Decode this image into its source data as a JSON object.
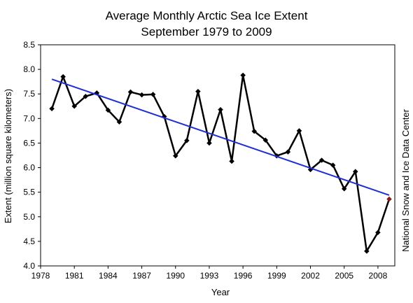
{
  "chart_data": {
    "type": "line",
    "title": "Average Monthly Arctic Sea Ice Extent",
    "subtitle": "September 1979 to 2009",
    "xlabel": "Year",
    "ylabel": "Extent (million square kilometers)",
    "credit": "National Snow and Ice Data Center",
    "xlim": [
      1978,
      2009.5
    ],
    "ylim": [
      4.0,
      8.5
    ],
    "x_ticks": [
      1978,
      1981,
      1984,
      1987,
      1990,
      1993,
      1996,
      1999,
      2002,
      2005,
      2008
    ],
    "y_ticks": [
      "4.0",
      "4.5",
      "5.0",
      "5.5",
      "6.0",
      "6.5",
      "7.0",
      "7.5",
      "8.0",
      "8.5"
    ],
    "grid": false,
    "series": [
      {
        "type": "line",
        "color": "#000000",
        "x": [
          1979,
          1980,
          1981,
          1982,
          1983,
          1984,
          1985,
          1986,
          1987,
          1988,
          1989,
          1990,
          1991,
          1992,
          1993,
          1994,
          1995,
          1996,
          1997,
          1998,
          1999,
          2000,
          2001,
          2002,
          2003,
          2004,
          2005,
          2006,
          2007,
          2008,
          2009
        ],
        "values": [
          7.2,
          7.85,
          7.25,
          7.45,
          7.52,
          7.17,
          6.93,
          7.54,
          7.48,
          7.49,
          7.04,
          6.24,
          6.55,
          7.55,
          6.5,
          7.18,
          6.13,
          7.88,
          6.74,
          6.56,
          6.24,
          6.32,
          6.75,
          5.96,
          6.15,
          6.05,
          5.57,
          5.92,
          4.3,
          4.68,
          5.36
        ],
        "highlight": {
          "x": 2009,
          "color": "#8b1a1a"
        }
      },
      {
        "type": "trend",
        "color": "#1f2fd6",
        "x": [
          1979,
          2009
        ],
        "values": [
          7.8,
          5.44
        ]
      }
    ]
  }
}
